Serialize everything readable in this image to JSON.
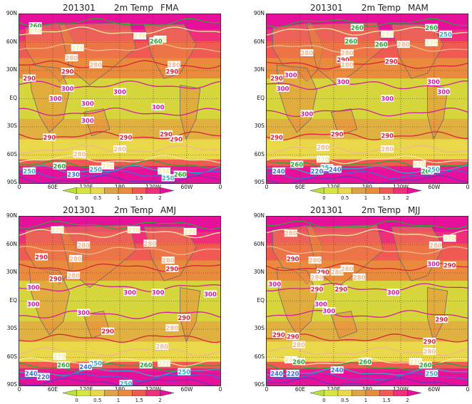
{
  "lat_labels": [
    "90N",
    "60N",
    "30N",
    "EQ",
    "30S",
    "60S",
    "90S"
  ],
  "lon_labels": [
    "0",
    "60E",
    "120E",
    "180",
    "120W",
    "60W",
    "0"
  ],
  "colorbar": {
    "ticks": [
      "0",
      "0.5",
      "1",
      "1.5",
      "2"
    ],
    "colors": [
      "#b8e23a",
      "#d6e442",
      "#e8d84a",
      "#e0a248",
      "#e98a3c",
      "#f05a52",
      "#ef2f7a",
      "#e6109a"
    ]
  },
  "colors": {
    "contour_300": "#d21fa0",
    "contour_290": "#d8243a",
    "contour_280": "#f0b890",
    "contour_270": "#f5eaa0",
    "contour_260": "#2aa634",
    "contour_250": "#2fa8c8",
    "contour_240": "#3a6fd8",
    "contour_220": "#7a2bc0"
  },
  "panels": [
    {
      "id": "fma",
      "year": "201301",
      "var": "2m Temp",
      "season": "FMA",
      "labels": [
        {
          "t": "260",
          "x": 8,
          "y": 7,
          "c": "260"
        },
        {
          "t": "270",
          "x": 8,
          "y": 10,
          "c": "270"
        },
        {
          "t": "270",
          "x": 29,
          "y": 20,
          "c": "270"
        },
        {
          "t": "280",
          "x": 26,
          "y": 26,
          "c": "280"
        },
        {
          "t": "270",
          "x": 60,
          "y": 13,
          "c": "270"
        },
        {
          "t": "270",
          "x": 70,
          "y": 15,
          "c": "270"
        },
        {
          "t": "260",
          "x": 68,
          "y": 16,
          "c": "260"
        },
        {
          "t": "280",
          "x": 77,
          "y": 30,
          "c": "280"
        },
        {
          "t": "290",
          "x": 5,
          "y": 38,
          "c": "290"
        },
        {
          "t": "290",
          "x": 24,
          "y": 34,
          "c": "290"
        },
        {
          "t": "280",
          "x": 38,
          "y": 30,
          "c": "280"
        },
        {
          "t": "290",
          "x": 76,
          "y": 34,
          "c": "290"
        },
        {
          "t": "300",
          "x": 24,
          "y": 44,
          "c": "300"
        },
        {
          "t": "300",
          "x": 18,
          "y": 50,
          "c": "300"
        },
        {
          "t": "300",
          "x": 34,
          "y": 53,
          "c": "300"
        },
        {
          "t": "300",
          "x": 50,
          "y": 46,
          "c": "300"
        },
        {
          "t": "300",
          "x": 69,
          "y": 55,
          "c": "300"
        },
        {
          "t": "300",
          "x": 34,
          "y": 63,
          "c": "300"
        },
        {
          "t": "290",
          "x": 15,
          "y": 73,
          "c": "290"
        },
        {
          "t": "290",
          "x": 53,
          "y": 73,
          "c": "290"
        },
        {
          "t": "290",
          "x": 78,
          "y": 74,
          "c": "290"
        },
        {
          "t": "290",
          "x": 73,
          "y": 71,
          "c": "290"
        },
        {
          "t": "280",
          "x": 30,
          "y": 83,
          "c": "280"
        },
        {
          "t": "280",
          "x": 50,
          "y": 80,
          "c": "280"
        },
        {
          "t": "260",
          "x": 20,
          "y": 90,
          "c": "260"
        },
        {
          "t": "250",
          "x": 5,
          "y": 93,
          "c": "250"
        },
        {
          "t": "230",
          "x": 27,
          "y": 95,
          "c": "240"
        },
        {
          "t": "250",
          "x": 38,
          "y": 92,
          "c": "250"
        },
        {
          "t": "270",
          "x": 44,
          "y": 90,
          "c": "270"
        },
        {
          "t": "270",
          "x": 72,
          "y": 93,
          "c": "270"
        },
        {
          "t": "250",
          "x": 74,
          "y": 97,
          "c": "250"
        },
        {
          "t": "260",
          "x": 80,
          "y": 95,
          "c": "260"
        }
      ]
    },
    {
      "id": "mam",
      "year": "201301",
      "var": "2m Temp",
      "season": "MAM",
      "labels": [
        {
          "t": "260",
          "x": 45,
          "y": 8,
          "c": "260"
        },
        {
          "t": "260",
          "x": 82,
          "y": 8,
          "c": "260"
        },
        {
          "t": "250",
          "x": 89,
          "y": 12,
          "c": "250"
        },
        {
          "t": "270",
          "x": 60,
          "y": 12,
          "c": "270"
        },
        {
          "t": "270",
          "x": 82,
          "y": 17,
          "c": "270"
        },
        {
          "t": "260",
          "x": 57,
          "y": 18,
          "c": "260"
        },
        {
          "t": "260",
          "x": 42,
          "y": 16,
          "c": "260"
        },
        {
          "t": "280",
          "x": 20,
          "y": 23,
          "c": "280"
        },
        {
          "t": "280",
          "x": 68,
          "y": 18,
          "c": "280"
        },
        {
          "t": "290",
          "x": 62,
          "y": 28,
          "c": "290"
        },
        {
          "t": "280",
          "x": 40,
          "y": 23,
          "c": "280"
        },
        {
          "t": "290",
          "x": 38,
          "y": 27,
          "c": "290"
        },
        {
          "t": "280",
          "x": 40,
          "y": 30,
          "c": "280"
        },
        {
          "t": "290",
          "x": 5,
          "y": 38,
          "c": "290"
        },
        {
          "t": "300",
          "x": 12,
          "y": 36,
          "c": "300"
        },
        {
          "t": "300",
          "x": 8,
          "y": 44,
          "c": "300"
        },
        {
          "t": "300",
          "x": 38,
          "y": 40,
          "c": "300"
        },
        {
          "t": "300",
          "x": 83,
          "y": 40,
          "c": "300"
        },
        {
          "t": "300",
          "x": 88,
          "y": 46,
          "c": "300"
        },
        {
          "t": "300",
          "x": 60,
          "y": 50,
          "c": "300"
        },
        {
          "t": "300",
          "x": 20,
          "y": 59,
          "c": "300"
        },
        {
          "t": "290",
          "x": 5,
          "y": 73,
          "c": "290"
        },
        {
          "t": "290",
          "x": 35,
          "y": 71,
          "c": "290"
        },
        {
          "t": "290",
          "x": 60,
          "y": 72,
          "c": "290"
        },
        {
          "t": "280",
          "x": 28,
          "y": 79,
          "c": "280"
        },
        {
          "t": "280",
          "x": 60,
          "y": 80,
          "c": "280"
        },
        {
          "t": "270",
          "x": 28,
          "y": 86,
          "c": "270"
        },
        {
          "t": "260",
          "x": 15,
          "y": 89,
          "c": "260"
        },
        {
          "t": "250",
          "x": 30,
          "y": 91,
          "c": "250"
        },
        {
          "t": "240",
          "x": 6,
          "y": 93,
          "c": "240"
        },
        {
          "t": "220",
          "x": 25,
          "y": 93,
          "c": "240"
        },
        {
          "t": "240",
          "x": 34,
          "y": 92,
          "c": "240"
        },
        {
          "t": "270",
          "x": 76,
          "y": 89,
          "c": "270"
        },
        {
          "t": "260",
          "x": 80,
          "y": 93,
          "c": "260"
        },
        {
          "t": "250",
          "x": 83,
          "y": 92,
          "c": "250"
        }
      ]
    },
    {
      "id": "amj",
      "year": "201301",
      "var": "2m Temp",
      "season": "AMJ",
      "labels": [
        {
          "t": "270",
          "x": 19,
          "y": 8,
          "c": "270"
        },
        {
          "t": "270",
          "x": 57,
          "y": 8,
          "c": "270"
        },
        {
          "t": "270",
          "x": 85,
          "y": 9,
          "c": "270"
        },
        {
          "t": "280",
          "x": 65,
          "y": 16,
          "c": "280"
        },
        {
          "t": "290",
          "x": 11,
          "y": 24,
          "c": "290"
        },
        {
          "t": "280",
          "x": 32,
          "y": 17,
          "c": "280"
        },
        {
          "t": "280",
          "x": 28,
          "y": 25,
          "c": "280"
        },
        {
          "t": "280",
          "x": 74,
          "y": 26,
          "c": "280"
        },
        {
          "t": "290",
          "x": 76,
          "y": 31,
          "c": "290"
        },
        {
          "t": "290",
          "x": 18,
          "y": 37,
          "c": "290"
        },
        {
          "t": "280",
          "x": 27,
          "y": 35,
          "c": "280"
        },
        {
          "t": "300",
          "x": 7,
          "y": 42,
          "c": "300"
        },
        {
          "t": "300",
          "x": 55,
          "y": 45,
          "c": "300"
        },
        {
          "t": "300",
          "x": 69,
          "y": 45,
          "c": "300"
        },
        {
          "t": "300",
          "x": 95,
          "y": 46,
          "c": "300"
        },
        {
          "t": "300",
          "x": 7,
          "y": 52,
          "c": "300"
        },
        {
          "t": "300",
          "x": 32,
          "y": 57,
          "c": "300"
        },
        {
          "t": "290",
          "x": 82,
          "y": 60,
          "c": "290"
        },
        {
          "t": "290",
          "x": 44,
          "y": 68,
          "c": "290"
        },
        {
          "t": "280",
          "x": 76,
          "y": 66,
          "c": "280"
        },
        {
          "t": "280",
          "x": 71,
          "y": 77,
          "c": "280"
        },
        {
          "t": "270",
          "x": 20,
          "y": 83,
          "c": "270"
        },
        {
          "t": "270",
          "x": 72,
          "y": 87,
          "c": "270"
        },
        {
          "t": "260",
          "x": 22,
          "y": 88,
          "c": "260"
        },
        {
          "t": "250",
          "x": 38,
          "y": 87,
          "c": "250"
        },
        {
          "t": "240",
          "x": 33,
          "y": 89,
          "c": "240"
        },
        {
          "t": "260",
          "x": 63,
          "y": 88,
          "c": "260"
        },
        {
          "t": "240",
          "x": 6,
          "y": 93,
          "c": "240"
        },
        {
          "t": "220",
          "x": 12,
          "y": 95,
          "c": "240"
        },
        {
          "t": "250",
          "x": 53,
          "y": 99,
          "c": "250"
        },
        {
          "t": "250",
          "x": 82,
          "y": 92,
          "c": "250"
        }
      ]
    },
    {
      "id": "mjj",
      "year": "201301",
      "var": "2m Temp",
      "season": "MJJ",
      "labels": [
        {
          "t": "280",
          "x": 12,
          "y": 10,
          "c": "280"
        },
        {
          "t": "270",
          "x": 91,
          "y": 13,
          "c": "270"
        },
        {
          "t": "280",
          "x": 84,
          "y": 17,
          "c": "280"
        },
        {
          "t": "290",
          "x": 13,
          "y": 25,
          "c": "290"
        },
        {
          "t": "280",
          "x": 24,
          "y": 26,
          "c": "280"
        },
        {
          "t": "290",
          "x": 28,
          "y": 33,
          "c": "290"
        },
        {
          "t": "280",
          "x": 35,
          "y": 33,
          "c": "280"
        },
        {
          "t": "280",
          "x": 40,
          "y": 31,
          "c": "280"
        },
        {
          "t": "300",
          "x": 83,
          "y": 28,
          "c": "300"
        },
        {
          "t": "290",
          "x": 91,
          "y": 29,
          "c": "290"
        },
        {
          "t": "280",
          "x": 25,
          "y": 36,
          "c": "280"
        },
        {
          "t": "280",
          "x": 46,
          "y": 36,
          "c": "280"
        },
        {
          "t": "300",
          "x": 4,
          "y": 40,
          "c": "300"
        },
        {
          "t": "290",
          "x": 25,
          "y": 43,
          "c": "290"
        },
        {
          "t": "290",
          "x": 37,
          "y": 43,
          "c": "290"
        },
        {
          "t": "300",
          "x": 63,
          "y": 45,
          "c": "300"
        },
        {
          "t": "300",
          "x": 27,
          "y": 52,
          "c": "300"
        },
        {
          "t": "300",
          "x": 31,
          "y": 56,
          "c": "300"
        },
        {
          "t": "290",
          "x": 87,
          "y": 61,
          "c": "290"
        },
        {
          "t": "290",
          "x": 6,
          "y": 70,
          "c": "290"
        },
        {
          "t": "290",
          "x": 13,
          "y": 71,
          "c": "290"
        },
        {
          "t": "280",
          "x": 16,
          "y": 76,
          "c": "280"
        },
        {
          "t": "290",
          "x": 81,
          "y": 74,
          "c": "290"
        },
        {
          "t": "280",
          "x": 81,
          "y": 80,
          "c": "280"
        },
        {
          "t": "270",
          "x": 12,
          "y": 85,
          "c": "270"
        },
        {
          "t": "260",
          "x": 16,
          "y": 86,
          "c": "260"
        },
        {
          "t": "260",
          "x": 49,
          "y": 86,
          "c": "260"
        },
        {
          "t": "270",
          "x": 74,
          "y": 86,
          "c": "270"
        },
        {
          "t": "260",
          "x": 79,
          "y": 88,
          "c": "260"
        },
        {
          "t": "240",
          "x": 5,
          "y": 93,
          "c": "240"
        },
        {
          "t": "220",
          "x": 13,
          "y": 93,
          "c": "240"
        },
        {
          "t": "240",
          "x": 35,
          "y": 91,
          "c": "240"
        },
        {
          "t": "250",
          "x": 82,
          "y": 93,
          "c": "250"
        }
      ]
    }
  ]
}
